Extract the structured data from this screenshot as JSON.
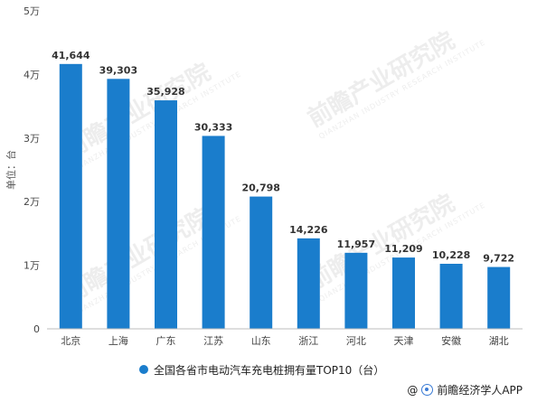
{
  "chart_data": {
    "type": "bar",
    "categories": [
      "北京",
      "上海",
      "广东",
      "江苏",
      "山东",
      "浙江",
      "河北",
      "天津",
      "安徽",
      "湖北"
    ],
    "values": [
      41644,
      39303,
      35928,
      30333,
      20798,
      14226,
      11957,
      11209,
      10228,
      9722
    ],
    "data_labels": [
      "41,644",
      "39,303",
      "35,928",
      "30,333",
      "20,798",
      "14,226",
      "11,957",
      "11,209",
      "10,228",
      "9,722"
    ],
    "ylabel": "单位：台",
    "ylim": [
      0,
      50000
    ],
    "yticks": [
      0,
      10000,
      20000,
      30000,
      40000,
      50000
    ],
    "ytick_labels": [
      "0",
      "1万",
      "2万",
      "3万",
      "4万",
      "5万"
    ],
    "grid": false,
    "legend": {
      "label": "全国各省市电动汽车充电桩拥有量TOP10（台）",
      "placement": "bottom"
    },
    "bar_color": "#1a7dcc"
  },
  "source": {
    "prefix": "@",
    "name": "前瞻经济学人APP"
  },
  "watermark": {
    "text": "前瞻产业研究院",
    "sub": "QIANZHAN INDUSTRY RESEARCH INSTITUTE"
  }
}
